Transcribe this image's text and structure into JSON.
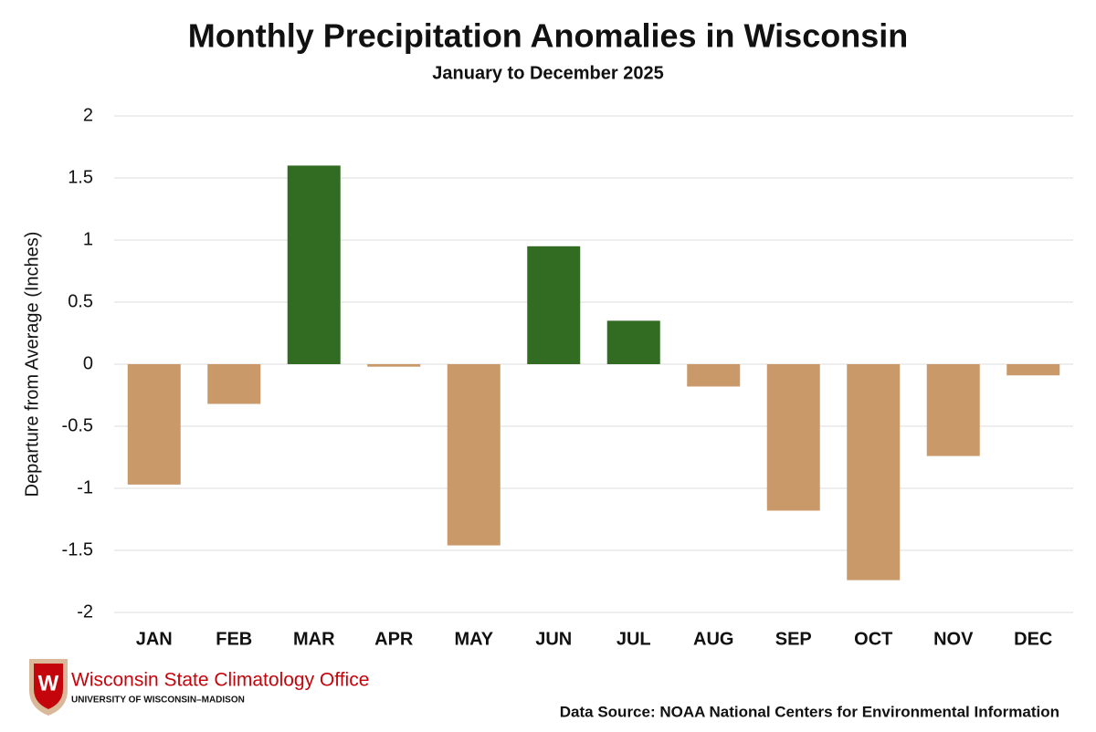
{
  "chart_data": {
    "type": "bar",
    "title": "Monthly Precipitation Anomalies in Wisconsin",
    "subtitle": "January to December 2025",
    "y_label": "Departure from Average (Inches)",
    "categories": [
      "JAN",
      "FEB",
      "MAR",
      "APR",
      "MAY",
      "JUN",
      "JUL",
      "AUG",
      "SEP",
      "OCT",
      "NOV",
      "DEC"
    ],
    "values": [
      -0.97,
      -0.32,
      1.6,
      -0.02,
      -1.46,
      0.95,
      0.35,
      -0.18,
      -1.18,
      -1.74,
      -0.74,
      -0.09
    ],
    "positive_color": "#326b22",
    "negative_color": "#c9996a",
    "ylim": [
      -2,
      2
    ],
    "yticks": [
      -2,
      -1.5,
      -1,
      -0.5,
      0,
      0.5,
      1,
      1.5,
      2
    ],
    "grid": true,
    "logo_letter": "W",
    "logo_title": "Wisconsin State Climatology Office",
    "logo_subtitle": "UNIVERSITY OF WISCONSIN–MADISON",
    "source": "Data Source: NOAA National Centers for Environmental Information"
  }
}
